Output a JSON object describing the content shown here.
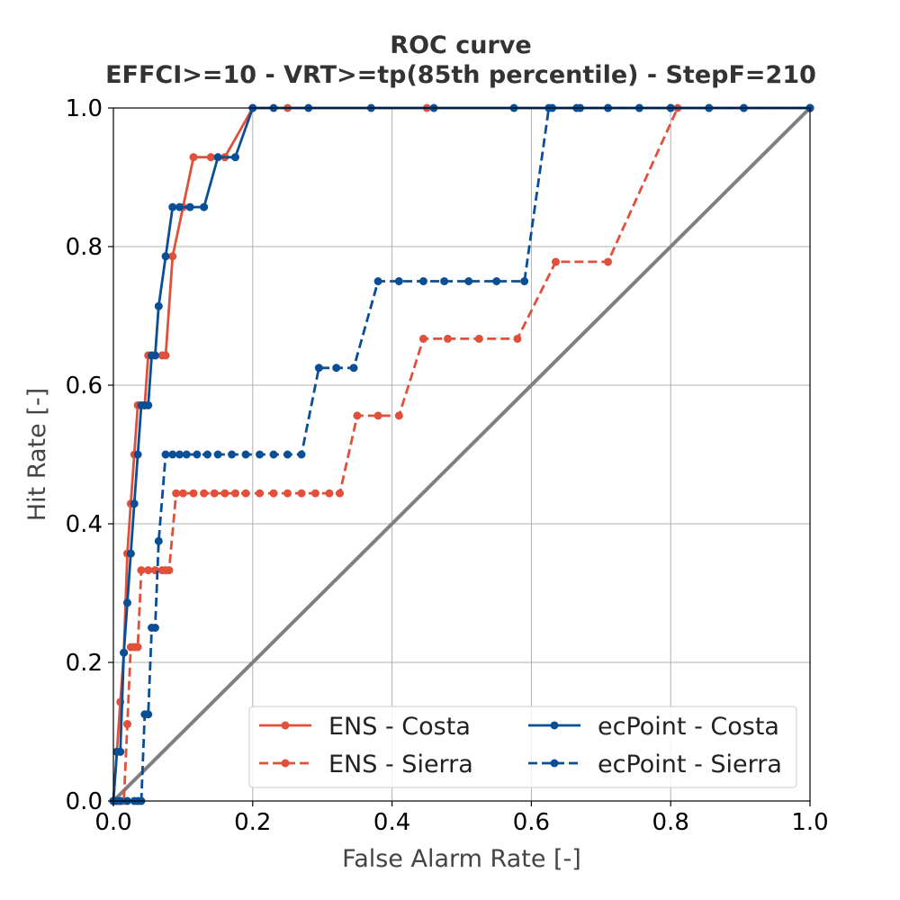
{
  "chart_data": {
    "type": "line",
    "title": "ROC curve",
    "subtitle": "EFFCI>=10 - VRT>=tp(85th percentile) - StepF=210",
    "xlabel": "False Alarm Rate [-]",
    "ylabel": "Hit Rate [-]",
    "xlim": [
      0.0,
      1.0
    ],
    "ylim": [
      0.0,
      1.0
    ],
    "xticks": [
      "0.0",
      "0.2",
      "0.4",
      "0.6",
      "0.8",
      "1.0"
    ],
    "yticks": [
      "0.0",
      "0.2",
      "0.4",
      "0.6",
      "0.8",
      "1.0"
    ],
    "grid": true,
    "legend_position": "lower-right",
    "diagonal": {
      "x": [
        0.0,
        1.0
      ],
      "y": [
        0.0,
        1.0
      ],
      "color": "#808080"
    },
    "series": [
      {
        "name": "ENS - Costa",
        "color": "#e0503a",
        "dash": "solid",
        "x": [
          0.0,
          0.005,
          0.01,
          0.015,
          0.02,
          0.025,
          0.03,
          0.035,
          0.04,
          0.045,
          0.05,
          0.06,
          0.07,
          0.075,
          0.085,
          0.1,
          0.115,
          0.14,
          0.16,
          0.2,
          0.25,
          0.45,
          1.0
        ],
        "y": [
          0.0,
          0.071,
          0.143,
          0.214,
          0.357,
          0.429,
          0.5,
          0.571,
          0.571,
          0.571,
          0.643,
          0.643,
          0.643,
          0.643,
          0.786,
          0.857,
          0.929,
          0.929,
          0.929,
          1.0,
          1.0,
          1.0,
          1.0
        ]
      },
      {
        "name": "ENS - Sierra",
        "color": "#e0503a",
        "dash": "dashed",
        "x": [
          0.0,
          0.005,
          0.01,
          0.015,
          0.02,
          0.025,
          0.03,
          0.035,
          0.04,
          0.05,
          0.06,
          0.07,
          0.075,
          0.08,
          0.09,
          0.1,
          0.115,
          0.13,
          0.145,
          0.16,
          0.175,
          0.19,
          0.21,
          0.23,
          0.25,
          0.27,
          0.29,
          0.31,
          0.325,
          0.35,
          0.38,
          0.41,
          0.445,
          0.48,
          0.525,
          0.58,
          0.635,
          0.71,
          0.81,
          1.0
        ],
        "y": [
          0.0,
          0.0,
          0.0,
          0.0,
          0.111,
          0.222,
          0.222,
          0.222,
          0.333,
          0.333,
          0.333,
          0.333,
          0.333,
          0.333,
          0.444,
          0.444,
          0.444,
          0.444,
          0.444,
          0.444,
          0.444,
          0.444,
          0.444,
          0.444,
          0.444,
          0.444,
          0.444,
          0.444,
          0.444,
          0.556,
          0.556,
          0.556,
          0.667,
          0.667,
          0.667,
          0.667,
          0.778,
          0.778,
          1.0,
          1.0
        ]
      },
      {
        "name": "ecPoint - Costa",
        "color": "#0a4f96",
        "dash": "solid",
        "x": [
          0.0,
          0.005,
          0.01,
          0.015,
          0.02,
          0.025,
          0.03,
          0.035,
          0.04,
          0.045,
          0.05,
          0.055,
          0.06,
          0.065,
          0.075,
          0.085,
          0.095,
          0.11,
          0.13,
          0.15,
          0.175,
          0.2,
          0.23,
          0.28,
          0.37,
          0.46,
          0.575,
          0.63,
          0.67,
          0.71,
          0.755,
          0.8,
          0.855,
          0.905,
          1.0
        ],
        "y": [
          0.0,
          0.071,
          0.071,
          0.214,
          0.286,
          0.357,
          0.429,
          0.5,
          0.571,
          0.571,
          0.571,
          0.643,
          0.643,
          0.714,
          0.786,
          0.857,
          0.857,
          0.857,
          0.857,
          0.929,
          0.929,
          1.0,
          1.0,
          1.0,
          1.0,
          1.0,
          1.0,
          1.0,
          1.0,
          1.0,
          1.0,
          1.0,
          1.0,
          1.0,
          1.0
        ]
      },
      {
        "name": "ecPoint - Sierra",
        "color": "#0a4f96",
        "dash": "dashed",
        "x": [
          0.0,
          0.005,
          0.01,
          0.02,
          0.03,
          0.035,
          0.04,
          0.045,
          0.05,
          0.055,
          0.06,
          0.065,
          0.075,
          0.085,
          0.095,
          0.105,
          0.12,
          0.135,
          0.15,
          0.17,
          0.19,
          0.21,
          0.23,
          0.25,
          0.27,
          0.295,
          0.32,
          0.345,
          0.38,
          0.41,
          0.445,
          0.475,
          0.51,
          0.55,
          0.59,
          0.625,
          0.665,
          0.71,
          0.755,
          0.8,
          0.855,
          0.905,
          1.0
        ],
        "y": [
          0.0,
          0.0,
          0.0,
          0.0,
          0.0,
          0.0,
          0.0,
          0.125,
          0.125,
          0.25,
          0.25,
          0.375,
          0.5,
          0.5,
          0.5,
          0.5,
          0.5,
          0.5,
          0.5,
          0.5,
          0.5,
          0.5,
          0.5,
          0.5,
          0.5,
          0.625,
          0.625,
          0.625,
          0.75,
          0.75,
          0.75,
          0.75,
          0.75,
          0.75,
          0.75,
          1.0,
          1.0,
          1.0,
          1.0,
          1.0,
          1.0,
          1.0,
          1.0
        ]
      }
    ]
  }
}
